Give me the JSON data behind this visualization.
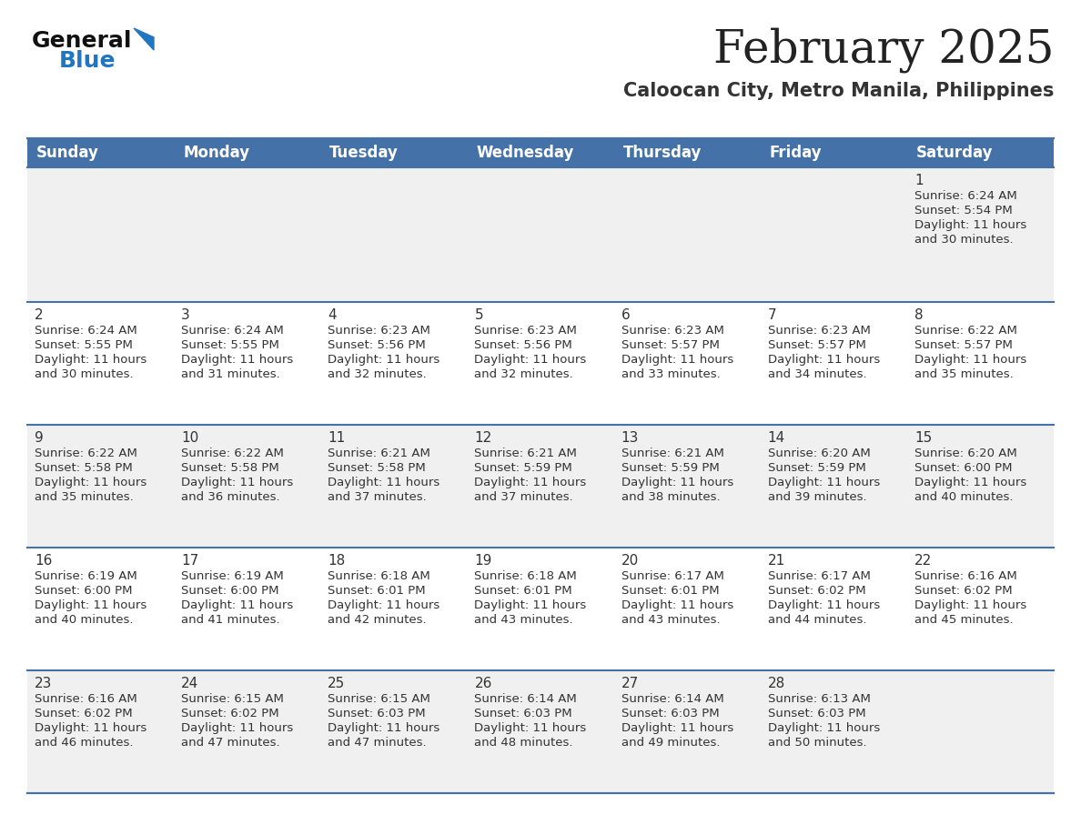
{
  "title": "February 2025",
  "subtitle": "Caloocan City, Metro Manila, Philippines",
  "days_of_week": [
    "Sunday",
    "Monday",
    "Tuesday",
    "Wednesday",
    "Thursday",
    "Friday",
    "Saturday"
  ],
  "header_bg": "#4472a8",
  "header_text": "#ffffff",
  "row_bg_gray": "#f0f0f0",
  "row_bg_white": "#ffffff",
  "cell_text_color": "#333333",
  "border_color": "#4472a8",
  "title_color": "#222222",
  "subtitle_color": "#333333",
  "logo_general_color": "#111111",
  "logo_blue_color": "#2176c2",
  "calendar_data": [
    {
      "day": 1,
      "col": 6,
      "row": 0,
      "sunrise": "6:24 AM",
      "sunset": "5:54 PM",
      "daylight_mins": "30"
    },
    {
      "day": 2,
      "col": 0,
      "row": 1,
      "sunrise": "6:24 AM",
      "sunset": "5:55 PM",
      "daylight_mins": "30"
    },
    {
      "day": 3,
      "col": 1,
      "row": 1,
      "sunrise": "6:24 AM",
      "sunset": "5:55 PM",
      "daylight_mins": "31"
    },
    {
      "day": 4,
      "col": 2,
      "row": 1,
      "sunrise": "6:23 AM",
      "sunset": "5:56 PM",
      "daylight_mins": "32"
    },
    {
      "day": 5,
      "col": 3,
      "row": 1,
      "sunrise": "6:23 AM",
      "sunset": "5:56 PM",
      "daylight_mins": "32"
    },
    {
      "day": 6,
      "col": 4,
      "row": 1,
      "sunrise": "6:23 AM",
      "sunset": "5:57 PM",
      "daylight_mins": "33"
    },
    {
      "day": 7,
      "col": 5,
      "row": 1,
      "sunrise": "6:23 AM",
      "sunset": "5:57 PM",
      "daylight_mins": "34"
    },
    {
      "day": 8,
      "col": 6,
      "row": 1,
      "sunrise": "6:22 AM",
      "sunset": "5:57 PM",
      "daylight_mins": "35"
    },
    {
      "day": 9,
      "col": 0,
      "row": 2,
      "sunrise": "6:22 AM",
      "sunset": "5:58 PM",
      "daylight_mins": "35"
    },
    {
      "day": 10,
      "col": 1,
      "row": 2,
      "sunrise": "6:22 AM",
      "sunset": "5:58 PM",
      "daylight_mins": "36"
    },
    {
      "day": 11,
      "col": 2,
      "row": 2,
      "sunrise": "6:21 AM",
      "sunset": "5:58 PM",
      "daylight_mins": "37"
    },
    {
      "day": 12,
      "col": 3,
      "row": 2,
      "sunrise": "6:21 AM",
      "sunset": "5:59 PM",
      "daylight_mins": "37"
    },
    {
      "day": 13,
      "col": 4,
      "row": 2,
      "sunrise": "6:21 AM",
      "sunset": "5:59 PM",
      "daylight_mins": "38"
    },
    {
      "day": 14,
      "col": 5,
      "row": 2,
      "sunrise": "6:20 AM",
      "sunset": "5:59 PM",
      "daylight_mins": "39"
    },
    {
      "day": 15,
      "col": 6,
      "row": 2,
      "sunrise": "6:20 AM",
      "sunset": "6:00 PM",
      "daylight_mins": "40"
    },
    {
      "day": 16,
      "col": 0,
      "row": 3,
      "sunrise": "6:19 AM",
      "sunset": "6:00 PM",
      "daylight_mins": "40"
    },
    {
      "day": 17,
      "col": 1,
      "row": 3,
      "sunrise": "6:19 AM",
      "sunset": "6:00 PM",
      "daylight_mins": "41"
    },
    {
      "day": 18,
      "col": 2,
      "row": 3,
      "sunrise": "6:18 AM",
      "sunset": "6:01 PM",
      "daylight_mins": "42"
    },
    {
      "day": 19,
      "col": 3,
      "row": 3,
      "sunrise": "6:18 AM",
      "sunset": "6:01 PM",
      "daylight_mins": "43"
    },
    {
      "day": 20,
      "col": 4,
      "row": 3,
      "sunrise": "6:17 AM",
      "sunset": "6:01 PM",
      "daylight_mins": "43"
    },
    {
      "day": 21,
      "col": 5,
      "row": 3,
      "sunrise": "6:17 AM",
      "sunset": "6:02 PM",
      "daylight_mins": "44"
    },
    {
      "day": 22,
      "col": 6,
      "row": 3,
      "sunrise": "6:16 AM",
      "sunset": "6:02 PM",
      "daylight_mins": "45"
    },
    {
      "day": 23,
      "col": 0,
      "row": 4,
      "sunrise": "6:16 AM",
      "sunset": "6:02 PM",
      "daylight_mins": "46"
    },
    {
      "day": 24,
      "col": 1,
      "row": 4,
      "sunrise": "6:15 AM",
      "sunset": "6:02 PM",
      "daylight_mins": "47"
    },
    {
      "day": 25,
      "col": 2,
      "row": 4,
      "sunrise": "6:15 AM",
      "sunset": "6:03 PM",
      "daylight_mins": "47"
    },
    {
      "day": 26,
      "col": 3,
      "row": 4,
      "sunrise": "6:14 AM",
      "sunset": "6:03 PM",
      "daylight_mins": "48"
    },
    {
      "day": 27,
      "col": 4,
      "row": 4,
      "sunrise": "6:14 AM",
      "sunset": "6:03 PM",
      "daylight_mins": "49"
    },
    {
      "day": 28,
      "col": 5,
      "row": 4,
      "sunrise": "6:13 AM",
      "sunset": "6:03 PM",
      "daylight_mins": "50"
    }
  ]
}
